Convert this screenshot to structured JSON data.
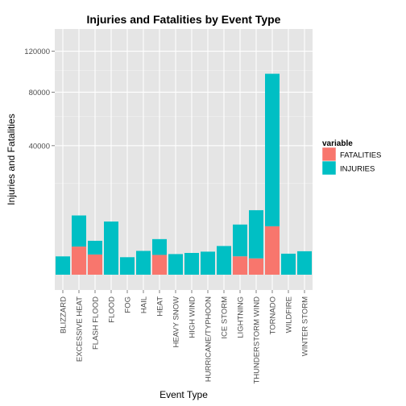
{
  "chart_data": {
    "type": "bar",
    "stacked": true,
    "title": "Injuries and Fatalities by Event Type",
    "xlabel": "Event Type",
    "ylabel": "Injuries and Fatalities",
    "y_scale": "sqrt",
    "ylim": [
      0,
      145000
    ],
    "y_ticks": [
      40000,
      80000,
      120000
    ],
    "y_tick_labels": [
      "40000",
      "80000",
      "120000"
    ],
    "grid": true,
    "legend_position": "right",
    "legend_title": "variable",
    "categories": [
      "BLIZZARD",
      "EXCESSIVE HEAT",
      "FLASH FLOOD",
      "FLOOD",
      "FOG",
      "HAIL",
      "HEAT",
      "HEAVY SNOW",
      "HIGH WIND",
      "HURRICANE/TYPHOON",
      "ICE STORM",
      "LIGHTNING",
      "THUNDERSTORM WIND",
      "TORNADO",
      "WILDFIRE",
      "WINTER STORM"
    ],
    "series": [
      {
        "name": "FATALITIES",
        "color": "#F8766D",
        "values": [
          0,
          1900,
          980,
          0,
          0,
          0,
          940,
          0,
          0,
          0,
          0,
          810,
          640,
          5630,
          0,
          0
        ]
      },
      {
        "name": "INJURIES",
        "color": "#00BFC4",
        "values": [
          805,
          6525,
          1780,
          6790,
          734,
          1361,
          2100,
          1021,
          1137,
          1275,
          1975,
          5230,
          9350,
          91346,
          1060,
          1321
        ]
      }
    ]
  }
}
